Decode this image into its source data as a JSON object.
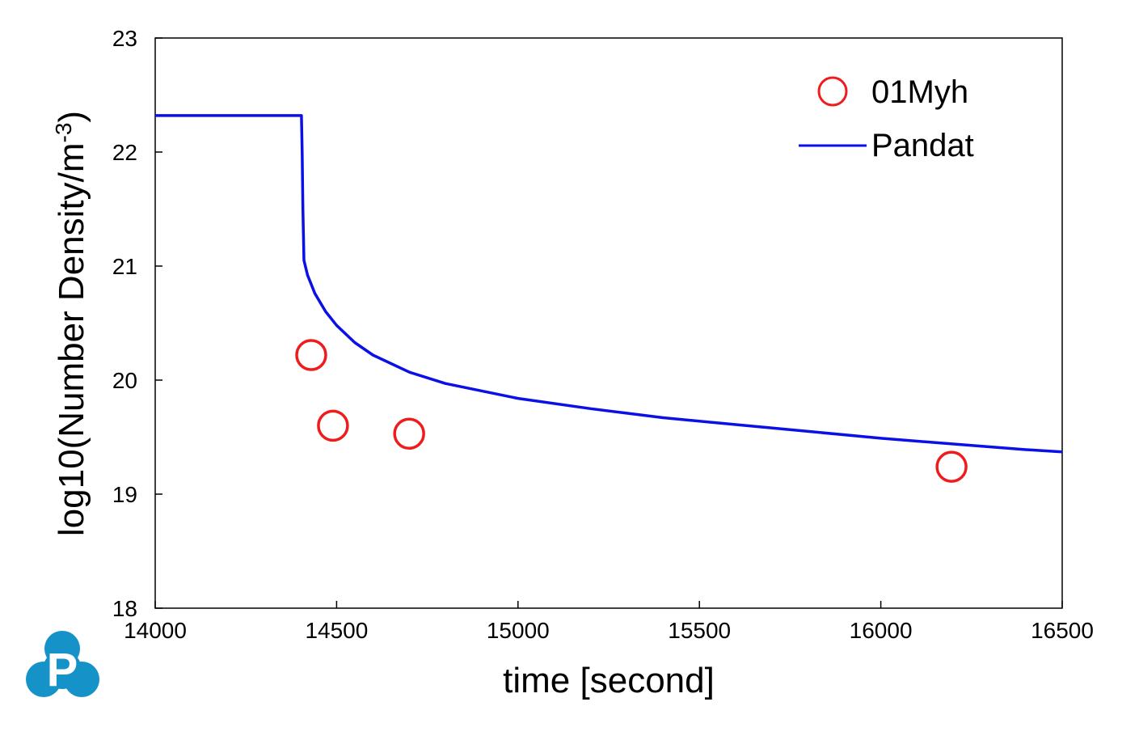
{
  "chart_data": {
    "type": "line",
    "xlabel": "time [second]",
    "ylabel": {
      "main": "log10(Number Density/m",
      "superscript": "-3",
      "suffix": ")"
    },
    "xlim": [
      14000,
      16500
    ],
    "ylim": [
      18,
      23
    ],
    "x_ticks": [
      "14000",
      "14500",
      "15000",
      "15500",
      "16000",
      "16500"
    ],
    "y_ticks": [
      "18",
      "19",
      "20",
      "21",
      "22",
      "23"
    ],
    "grid": false,
    "legend": {
      "placement": "top-right",
      "entries": [
        "01Myh",
        "Pandat"
      ]
    },
    "series": [
      {
        "name": "01Myh",
        "kind": "scatter",
        "marker": "open-circle",
        "color": "#ee1c1c",
        "points": [
          {
            "x": 14430,
            "y": 20.22
          },
          {
            "x": 14490,
            "y": 19.6
          },
          {
            "x": 14700,
            "y": 19.53
          },
          {
            "x": 16195,
            "y": 19.24
          }
        ]
      },
      {
        "name": "Pandat",
        "kind": "line",
        "color": "#0a10e6",
        "points": [
          {
            "x": 14000,
            "y": 22.32
          },
          {
            "x": 14403,
            "y": 22.32
          },
          {
            "x": 14405,
            "y": 22.0
          },
          {
            "x": 14407,
            "y": 21.5
          },
          {
            "x": 14410,
            "y": 21.05
          },
          {
            "x": 14420,
            "y": 20.92
          },
          {
            "x": 14440,
            "y": 20.76
          },
          {
            "x": 14470,
            "y": 20.6
          },
          {
            "x": 14500,
            "y": 20.48
          },
          {
            "x": 14550,
            "y": 20.33
          },
          {
            "x": 14600,
            "y": 20.22
          },
          {
            "x": 14700,
            "y": 20.07
          },
          {
            "x": 14800,
            "y": 19.97
          },
          {
            "x": 15000,
            "y": 19.84
          },
          {
            "x": 15200,
            "y": 19.75
          },
          {
            "x": 15400,
            "y": 19.67
          },
          {
            "x": 15600,
            "y": 19.61
          },
          {
            "x": 15800,
            "y": 19.55
          },
          {
            "x": 16000,
            "y": 19.49
          },
          {
            "x": 16200,
            "y": 19.44
          },
          {
            "x": 16400,
            "y": 19.39
          },
          {
            "x": 16500,
            "y": 19.37
          }
        ]
      }
    ]
  },
  "logo": {
    "letter": "P",
    "color": "#1593c8"
  }
}
